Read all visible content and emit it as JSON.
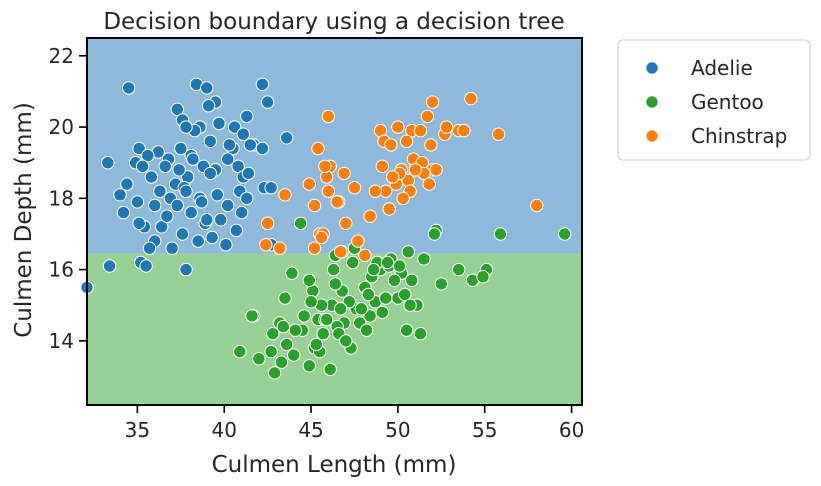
{
  "chart_data": {
    "type": "scatter",
    "title": "Decision boundary using a decision tree",
    "xlabel": "Culmen Length (mm)",
    "ylabel": "Culmen Depth (mm)",
    "xlim": [
      32.1,
      60.6
    ],
    "ylim": [
      12.2,
      22.5
    ],
    "xticks": [
      35,
      40,
      45,
      50,
      55,
      60
    ],
    "yticks": [
      14,
      16,
      18,
      20,
      22
    ],
    "grid": false,
    "legend_position": "outside-upper-right",
    "decision_regions": [
      {
        "class": "Adelie",
        "y_from": 16.45,
        "y_to": 22.5,
        "color": "#8fb9da"
      },
      {
        "class": "Gentoo",
        "y_from": 12.2,
        "y_to": 16.45,
        "color": "#98d095"
      }
    ],
    "series": [
      {
        "name": "Adelie",
        "color": "#1f77b4",
        "points": [
          [
            34.5,
            21.1
          ],
          [
            38.4,
            21.2
          ],
          [
            39,
            21.1
          ],
          [
            42.2,
            21.2
          ],
          [
            39.5,
            20.7
          ],
          [
            39.1,
            20.6
          ],
          [
            42.5,
            20.7
          ],
          [
            37.3,
            20.5
          ],
          [
            37.6,
            20.2
          ],
          [
            38.6,
            20
          ],
          [
            38.3,
            19.9
          ],
          [
            37.8,
            20
          ],
          [
            39.7,
            20.1
          ],
          [
            40.6,
            20
          ],
          [
            41.3,
            20.3
          ],
          [
            41.1,
            19.8
          ],
          [
            40.5,
            19.4
          ],
          [
            41.7,
            19.5
          ],
          [
            38.1,
            19.2
          ],
          [
            36.2,
            19.3
          ],
          [
            35.1,
            19.4
          ],
          [
            35.6,
            19.2
          ],
          [
            34.9,
            19
          ],
          [
            33.3,
            19
          ],
          [
            37.5,
            19.4
          ],
          [
            36.8,
            19.1
          ],
          [
            38.2,
            19.1
          ],
          [
            40.3,
            19.5
          ],
          [
            42.2,
            19.4
          ],
          [
            41.5,
            19.5
          ],
          [
            43.6,
            19.7
          ],
          [
            36.6,
            18.9
          ],
          [
            35.8,
            18.6
          ],
          [
            37.2,
            18.4
          ],
          [
            37.9,
            18.6
          ],
          [
            38.8,
            18.9
          ],
          [
            39.5,
            18.8
          ],
          [
            40.8,
            18.9
          ],
          [
            39.2,
            18.7
          ],
          [
            41.1,
            18.6
          ],
          [
            41.4,
            18.7
          ],
          [
            42.3,
            18.3
          ],
          [
            42.7,
            18.3
          ],
          [
            35.3,
            18.9
          ],
          [
            34.4,
            18.4
          ],
          [
            34.0,
            18.1
          ],
          [
            35.0,
            17.9
          ],
          [
            36.0,
            17.8
          ],
          [
            36.9,
            18.0
          ],
          [
            37.7,
            18.3
          ],
          [
            38.6,
            18.0
          ],
          [
            39.6,
            18.1
          ],
          [
            40.2,
            17.8
          ],
          [
            41.0,
            17.6
          ],
          [
            42.5,
            17.3
          ],
          [
            36.4,
            17.2
          ],
          [
            36.7,
            17.5
          ],
          [
            37.3,
            17.8
          ],
          [
            38.1,
            17.6
          ],
          [
            38.9,
            17.3
          ],
          [
            39.8,
            17.4
          ],
          [
            40.7,
            17.1
          ],
          [
            35.4,
            17.2
          ],
          [
            36.0,
            16.8
          ],
          [
            35.7,
            16.6
          ],
          [
            37.0,
            16.6
          ],
          [
            37.6,
            17.0
          ],
          [
            38.5,
            16.8
          ],
          [
            39.3,
            16.9
          ],
          [
            40.1,
            16.7
          ],
          [
            35.2,
            16.2
          ],
          [
            35.5,
            16.1
          ],
          [
            33.4,
            16.1
          ],
          [
            37.8,
            16.0
          ],
          [
            32.1,
            15.5
          ],
          [
            35.1,
            17.3
          ],
          [
            37.8,
            18.2
          ],
          [
            40.9,
            18.2
          ],
          [
            38.7,
            17.9
          ],
          [
            39.2,
            19.6
          ],
          [
            41.3,
            18.0
          ],
          [
            42.7,
            16.7
          ],
          [
            34.2,
            17.6
          ],
          [
            39.0,
            17.4
          ],
          [
            36.3,
            18.2
          ],
          [
            40.2,
            19.1
          ],
          [
            37.4,
            18.8
          ]
        ]
      },
      {
        "name": "Gentoo",
        "color": "#2ca02c",
        "points": [
          [
            59.6,
            17.0
          ],
          [
            55.9,
            17.0
          ],
          [
            52.2,
            17.1
          ],
          [
            50.6,
            16.5
          ],
          [
            49.6,
            16.3
          ],
          [
            47.5,
            16.6
          ],
          [
            46.4,
            16.4
          ],
          [
            44.4,
            17.3
          ],
          [
            53.5,
            16.0
          ],
          [
            55.1,
            16.0
          ],
          [
            50.2,
            15.9
          ],
          [
            49.8,
            15.7
          ],
          [
            48.5,
            15.8
          ],
          [
            46.8,
            15.4
          ],
          [
            45.1,
            15.4
          ],
          [
            44.9,
            15.7
          ],
          [
            43.5,
            15.2
          ],
          [
            46.2,
            15.0
          ],
          [
            47.6,
            14.9
          ],
          [
            48.7,
            15.1
          ],
          [
            50.0,
            15.2
          ],
          [
            51.1,
            15.0
          ],
          [
            52.5,
            15.6
          ],
          [
            54.3,
            15.7
          ],
          [
            54.9,
            15.8
          ],
          [
            49.0,
            16.0
          ],
          [
            45.4,
            14.6
          ],
          [
            44.5,
            14.3
          ],
          [
            45.8,
            14.6
          ],
          [
            46.9,
            14.5
          ],
          [
            47.3,
            13.8
          ],
          [
            49.1,
            14.8
          ],
          [
            50.5,
            14.3
          ],
          [
            51.3,
            14.2
          ],
          [
            46.1,
            13.2
          ],
          [
            45.2,
            13.8
          ],
          [
            43.2,
            14.5
          ],
          [
            42.9,
            13.1
          ],
          [
            44.0,
            13.6
          ],
          [
            42.8,
            14.2
          ],
          [
            41.7,
            14.7
          ],
          [
            40.9,
            13.7
          ],
          [
            42.0,
            13.5
          ],
          [
            42.7,
            13.7
          ],
          [
            43.3,
            13.4
          ],
          [
            43.6,
            13.9
          ],
          [
            45.5,
            13.7
          ],
          [
            46.5,
            14.4
          ],
          [
            47.8,
            14.5
          ],
          [
            48.2,
            14.3
          ],
          [
            48.4,
            14.7
          ],
          [
            49.3,
            15.2
          ],
          [
            48.8,
            16.2
          ],
          [
            49.5,
            16.1
          ],
          [
            50.8,
            15.7
          ],
          [
            51.5,
            16.3
          ],
          [
            45.3,
            13.9
          ],
          [
            44.9,
            13.3
          ],
          [
            46.6,
            14.2
          ],
          [
            47.0,
            14.0
          ],
          [
            45.6,
            15.0
          ],
          [
            47.2,
            15.1
          ],
          [
            48.1,
            15.5
          ],
          [
            49.4,
            16.2
          ],
          [
            50.4,
            15.3
          ],
          [
            45.9,
            14.6
          ],
          [
            46.7,
            14.9
          ],
          [
            44.1,
            14.3
          ],
          [
            45.0,
            15.1
          ],
          [
            43.9,
            15.9
          ],
          [
            52.1,
            17.0
          ],
          [
            46.4,
            15.6
          ],
          [
            47.4,
            16.2
          ],
          [
            48.6,
            16.0
          ],
          [
            50.1,
            16.1
          ],
          [
            44.6,
            14.7
          ],
          [
            45.7,
            14.2
          ],
          [
            46.3,
            16.0
          ],
          [
            47.9,
            14.9
          ],
          [
            43.4,
            14.4
          ],
          [
            41.6,
            14.7
          ],
          [
            48.3,
            15.3
          ],
          [
            50.7,
            15.0
          ]
        ]
      },
      {
        "name": "Chinstrap",
        "color": "#ff7f0e",
        "points": [
          [
            54.2,
            20.8
          ],
          [
            52.0,
            20.7
          ],
          [
            46.0,
            20.3
          ],
          [
            51.7,
            20.3
          ],
          [
            49.0,
            19.9
          ],
          [
            50.0,
            20.0
          ],
          [
            50.8,
            19.9
          ],
          [
            52.7,
            19.8
          ],
          [
            53.5,
            19.9
          ],
          [
            55.8,
            19.8
          ],
          [
            51.3,
            19.9
          ],
          [
            49.2,
            19.6
          ],
          [
            50.5,
            19.6
          ],
          [
            51.9,
            19.5
          ],
          [
            45.4,
            19.4
          ],
          [
            49.6,
            19.5
          ],
          [
            50.9,
            19.1
          ],
          [
            52.8,
            20.0
          ],
          [
            46.1,
            18.9
          ],
          [
            46.9,
            18.7
          ],
          [
            49.1,
            18.9
          ],
          [
            50.2,
            18.8
          ],
          [
            51.4,
            19.0
          ],
          [
            50.6,
            18.5
          ],
          [
            52.0,
            18.8
          ],
          [
            45.9,
            18.6
          ],
          [
            46.6,
            17.9
          ],
          [
            47.5,
            18.3
          ],
          [
            49.3,
            18.2
          ],
          [
            48.7,
            18.2
          ],
          [
            50.7,
            18.2
          ],
          [
            51.5,
            18.7
          ],
          [
            46.0,
            18.2
          ],
          [
            47.0,
            17.3
          ],
          [
            45.5,
            17.0
          ],
          [
            45.2,
            17.8
          ],
          [
            43.5,
            18.1
          ],
          [
            42.5,
            17.3
          ],
          [
            44.9,
            18.4
          ],
          [
            45.7,
            17.0
          ],
          [
            46.5,
            17.9
          ],
          [
            49.5,
            17.7
          ],
          [
            48.4,
            17.5
          ],
          [
            50.3,
            18.0
          ],
          [
            58.0,
            17.8
          ],
          [
            51.0,
            18.8
          ],
          [
            45.6,
            16.9
          ],
          [
            45.2,
            16.6
          ],
          [
            46.8,
            16.5
          ],
          [
            47.7,
            16.8
          ],
          [
            42.4,
            16.7
          ],
          [
            43.2,
            16.6
          ],
          [
            46.7,
            16.5
          ],
          [
            49.9,
            18.4
          ],
          [
            51.8,
            18.4
          ],
          [
            45.8,
            18.9
          ],
          [
            50.1,
            18.7
          ],
          [
            52.2,
            18.8
          ],
          [
            48.1,
            16.4
          ],
          [
            49.7,
            18.6
          ],
          [
            53.8,
            19.9
          ]
        ]
      }
    ]
  }
}
